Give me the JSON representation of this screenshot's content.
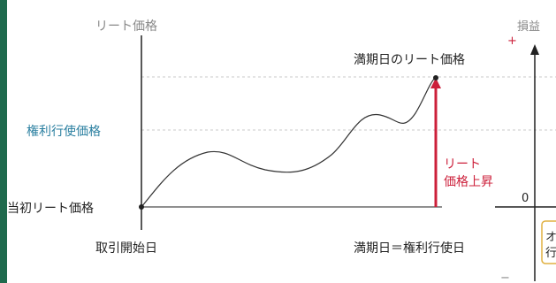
{
  "labels": {
    "reit_price_axis": "リート価格",
    "profit_axis": "損益",
    "strike_price": "権利行使価格",
    "initial_price": "当初リート価格",
    "start_date": "取引開始日",
    "maturity_price": "満期日のリート価格",
    "rise_line1": "リート",
    "rise_line2": "価格上昇",
    "maturity_date": "満期日＝権利行使日",
    "zero": "0",
    "plus": "+",
    "minus": "−",
    "box_char1": "オ",
    "box_char2": "行"
  },
  "colors": {
    "frame": "#1f6a4d",
    "strike_label": "#2a7fa0",
    "rise": "#cc1f3a",
    "axis": "#222222",
    "grid": "#c8c8c8",
    "box_border": "#e0b040"
  }
}
